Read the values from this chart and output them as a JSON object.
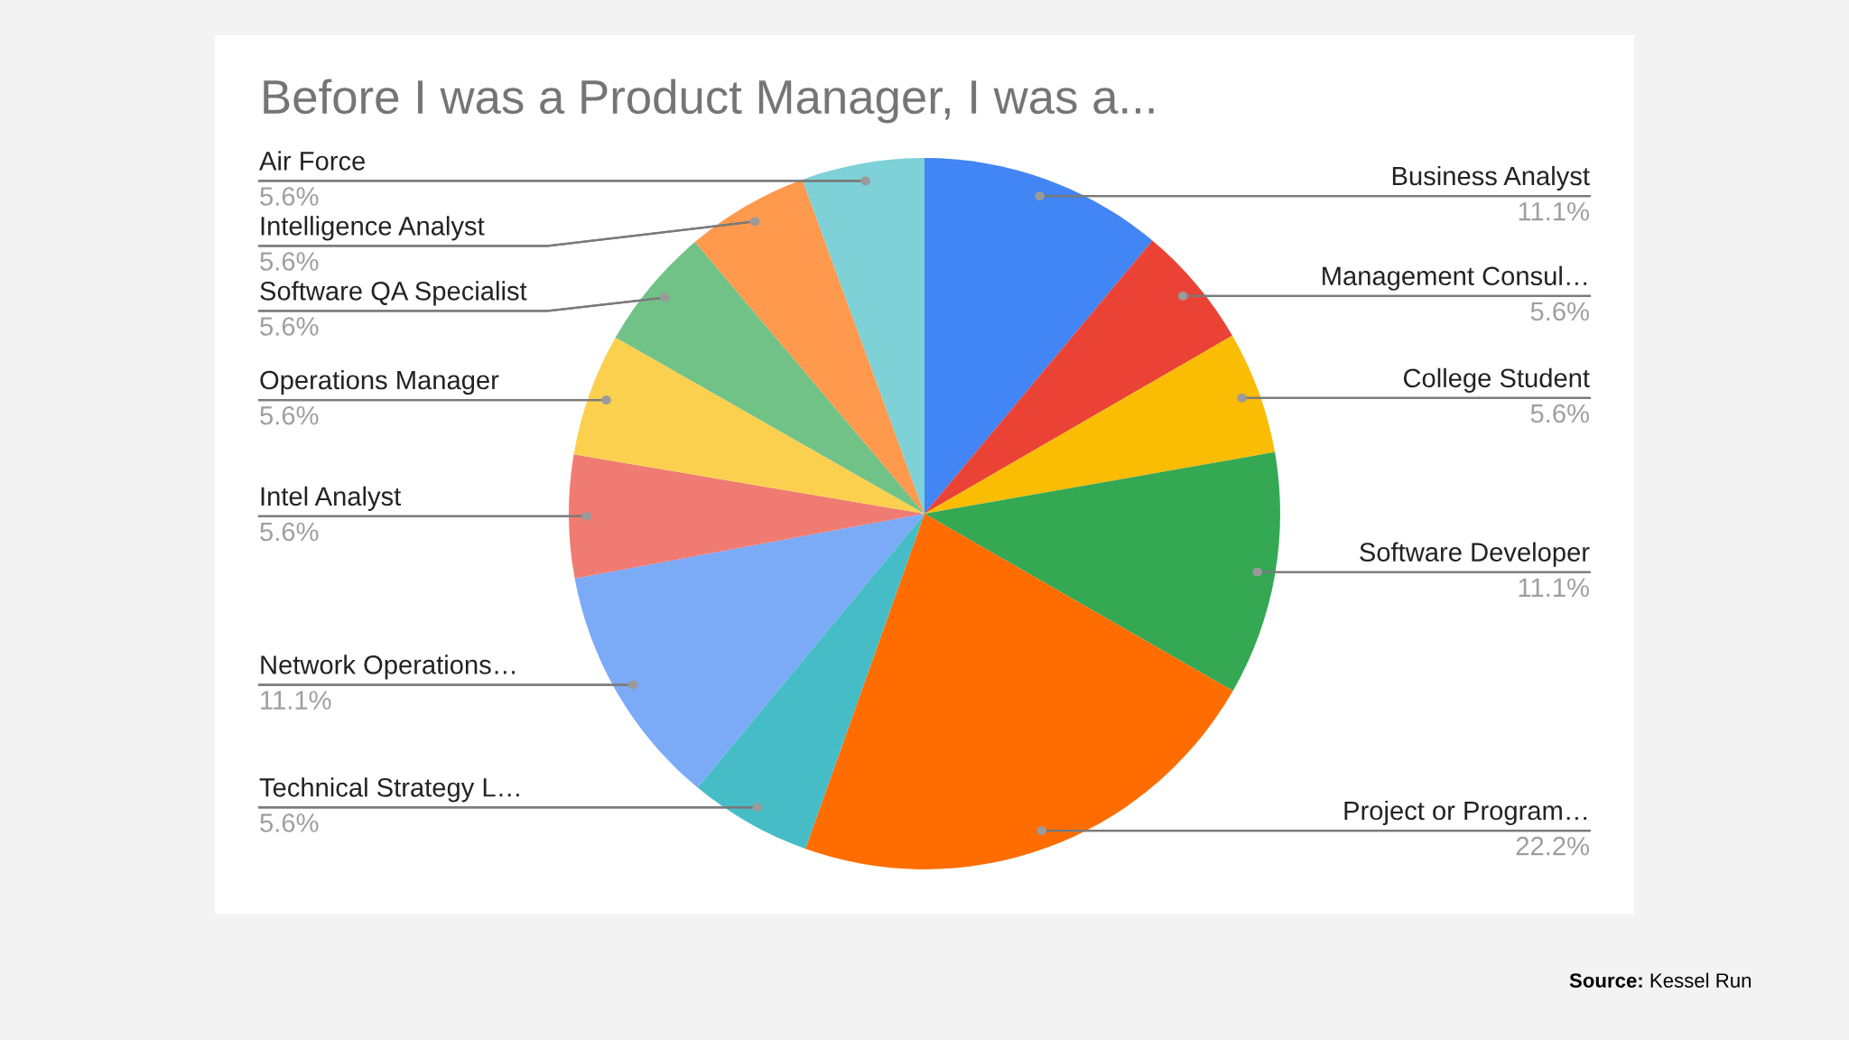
{
  "chart_data": {
    "type": "pie",
    "title": "Before I was a Product Manager, I was a...",
    "categories": [
      "Business Analyst",
      "Management Consul…",
      "College Student",
      "Software Developer",
      "Project or Program…",
      "Technical Strategy L…",
      "Network Operations…",
      "Intel Analyst",
      "Operations Manager",
      "Software QA Specialist",
      "Intelligence Analyst",
      "Air Force"
    ],
    "values": [
      11.1,
      5.6,
      5.6,
      11.1,
      22.2,
      5.6,
      11.1,
      5.6,
      5.6,
      5.6,
      5.6,
      5.6
    ],
    "colors": [
      "#4285f4",
      "#ea4335",
      "#fbbc04",
      "#34a853",
      "#ff6d01",
      "#46bdc6",
      "#7baaf7",
      "#f07b72",
      "#fcd04f",
      "#71c287",
      "#ff994d",
      "#7ed1d7"
    ],
    "value_labels": [
      "11.1%",
      "5.6%",
      "5.6%",
      "11.1%",
      "22.2%",
      "5.6%",
      "11.1%",
      "5.6%",
      "5.6%",
      "5.6%",
      "5.6%",
      "5.6%"
    ],
    "annotations": [
      "Source: Kessel Run"
    ]
  }
}
